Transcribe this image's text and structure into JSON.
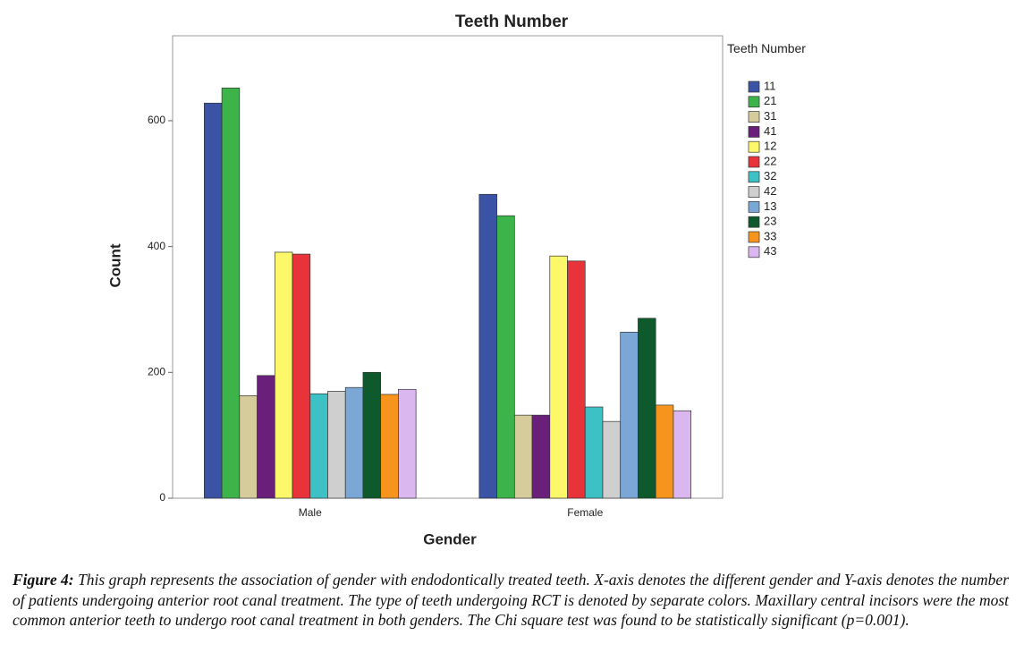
{
  "chart_data": {
    "type": "bar",
    "title": "Teeth Number",
    "x_label": "Gender",
    "y_label": "Count",
    "categories": [
      "Male",
      "Female"
    ],
    "legend_title": "Teeth Number",
    "legend_position": "right",
    "ylim": [
      0,
      735
    ],
    "yticks": [
      0,
      200,
      400,
      600
    ],
    "grid": false,
    "series": [
      {
        "name": "11",
        "color": "#3a53a4",
        "values": [
          628,
          483
        ]
      },
      {
        "name": "21",
        "color": "#3cb44a",
        "values": [
          652,
          449
        ]
      },
      {
        "name": "31",
        "color": "#d6cb9a",
        "values": [
          163,
          132
        ]
      },
      {
        "name": "41",
        "color": "#6a1f7a",
        "values": [
          195,
          132
        ]
      },
      {
        "name": "12",
        "color": "#fdf86a",
        "values": [
          391,
          385
        ]
      },
      {
        "name": "22",
        "color": "#e8333a",
        "values": [
          388,
          377
        ]
      },
      {
        "name": "32",
        "color": "#3ec1c4",
        "values": [
          166,
          145
        ]
      },
      {
        "name": "42",
        "color": "#cfcfcf",
        "values": [
          170,
          122
        ]
      },
      {
        "name": "13",
        "color": "#7ba7d6",
        "values": [
          176,
          264
        ]
      },
      {
        "name": "23",
        "color": "#0f5a2d",
        "values": [
          200,
          286
        ]
      },
      {
        "name": "33",
        "color": "#f7941d",
        "values": [
          165,
          148
        ]
      },
      {
        "name": "43",
        "color": "#dab7ef",
        "values": [
          173,
          139
        ]
      }
    ]
  },
  "figure": {
    "label": "Figure 4:",
    "text": "This graph represents the association of gender with endodontically treated teeth. X-axis denotes the different gender and Y-axis denotes the number of patients undergoing anterior root canal treatment. The type of teeth undergoing RCT is denoted by separate colors. Maxillary central incisors were the most common anterior teeth to undergo root canal treatment in both genders. The Chi square test was found to be statistically significant (p=0.001)."
  }
}
